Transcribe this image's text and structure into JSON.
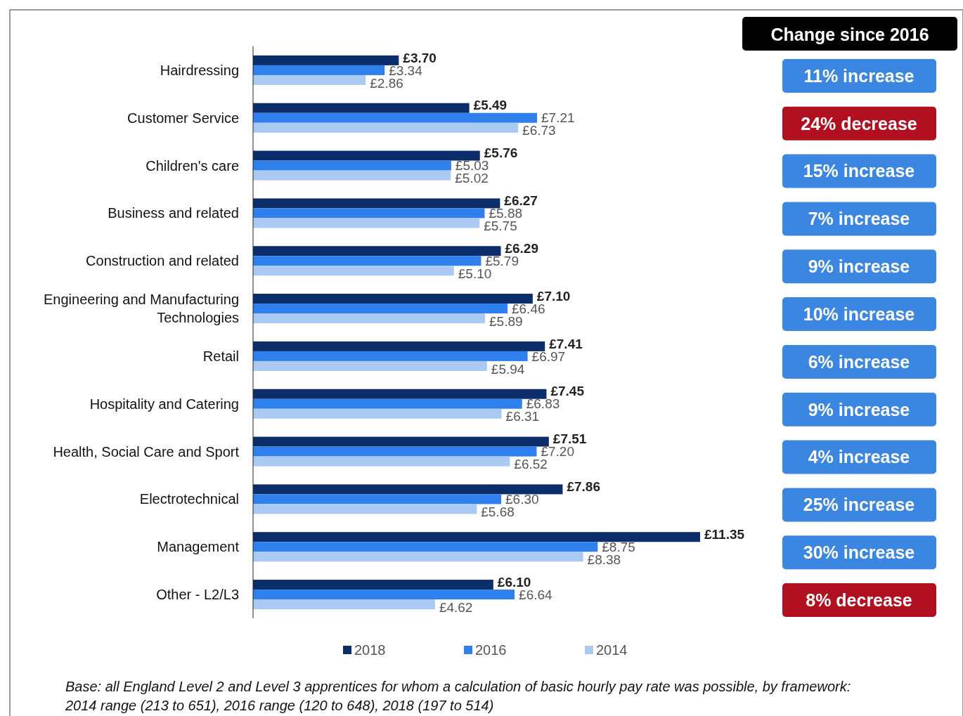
{
  "chart_data": [
    {
      "type": "bar",
      "orientation": "horizontal",
      "categories": [
        "Hairdressing",
        "Customer Service",
        "Children's care",
        "Business and related",
        "Construction and related",
        "Engineering and Manufacturing Technologies",
        "Retail",
        "Hospitality and Catering",
        "Health, Social Care and Sport",
        "Electrotechnical",
        "Management",
        "Other - L2/L3"
      ],
      "series": [
        {
          "name": "2018",
          "color": "#0b2e6b",
          "values": [
            3.7,
            5.49,
            5.76,
            6.27,
            6.29,
            7.1,
            7.41,
            7.45,
            7.51,
            7.86,
            11.35,
            6.1
          ],
          "value_labels": [
            "£3.70",
            "£5.49",
            "£5.76",
            "£6.27",
            "£6.29",
            "£7.10",
            "£7.41",
            "£7.45",
            "£7.51",
            "£7.86",
            "£11.35",
            "£6.10"
          ]
        },
        {
          "name": "2016",
          "color": "#2f80ed",
          "values": [
            3.34,
            7.21,
            5.03,
            5.88,
            5.79,
            6.46,
            6.97,
            6.83,
            7.2,
            6.3,
            8.75,
            6.64
          ],
          "value_labels": [
            "£3.34",
            "£7.21",
            "£5.03",
            "£5.88",
            "£5.79",
            "£6.46",
            "£6.97",
            "£6.83",
            "£7.20",
            "£6.30",
            "£8.75",
            "£6.64"
          ]
        },
        {
          "name": "2014",
          "color": "#abcaf3",
          "values": [
            2.86,
            6.73,
            5.02,
            5.75,
            5.1,
            5.89,
            5.94,
            6.31,
            6.52,
            5.68,
            8.38,
            4.62
          ],
          "value_labels": [
            "£2.86",
            "£6.73",
            "£5.02",
            "£5.75",
            "£5.10",
            "£5.89",
            "£5.94",
            "£6.31",
            "£6.52",
            "£5.68",
            "£8.38",
            "£4.62"
          ]
        }
      ],
      "tick_labels": "y",
      "legend": "bottom",
      "annotations": [
        "Base: all England Level 2 and Level 3 apprentices for whom a calculation of basic hourly pay rate was possible, by framework:",
        "2014 range (213 to 651), 2016  range (120 to 648), 2018 (197 to 514)"
      ]
    },
    {
      "type": "other",
      "title": "Change since 2016",
      "categories": [
        "11% increase",
        "24% decrease",
        "15% increase",
        "7% increase",
        "9% increase",
        "10% increase",
        "6% increase",
        "9% increase",
        "4% increase",
        "25% increase",
        "30% increase",
        "8% decrease"
      ],
      "colors": [
        "#3a86e0",
        "#b01020",
        "#3a86e0",
        "#3a86e0",
        "#3a86e0",
        "#3a86e0",
        "#3a86e0",
        "#3a86e0",
        "#3a86e0",
        "#3a86e0",
        "#3a86e0",
        "#b01020"
      ]
    }
  ]
}
